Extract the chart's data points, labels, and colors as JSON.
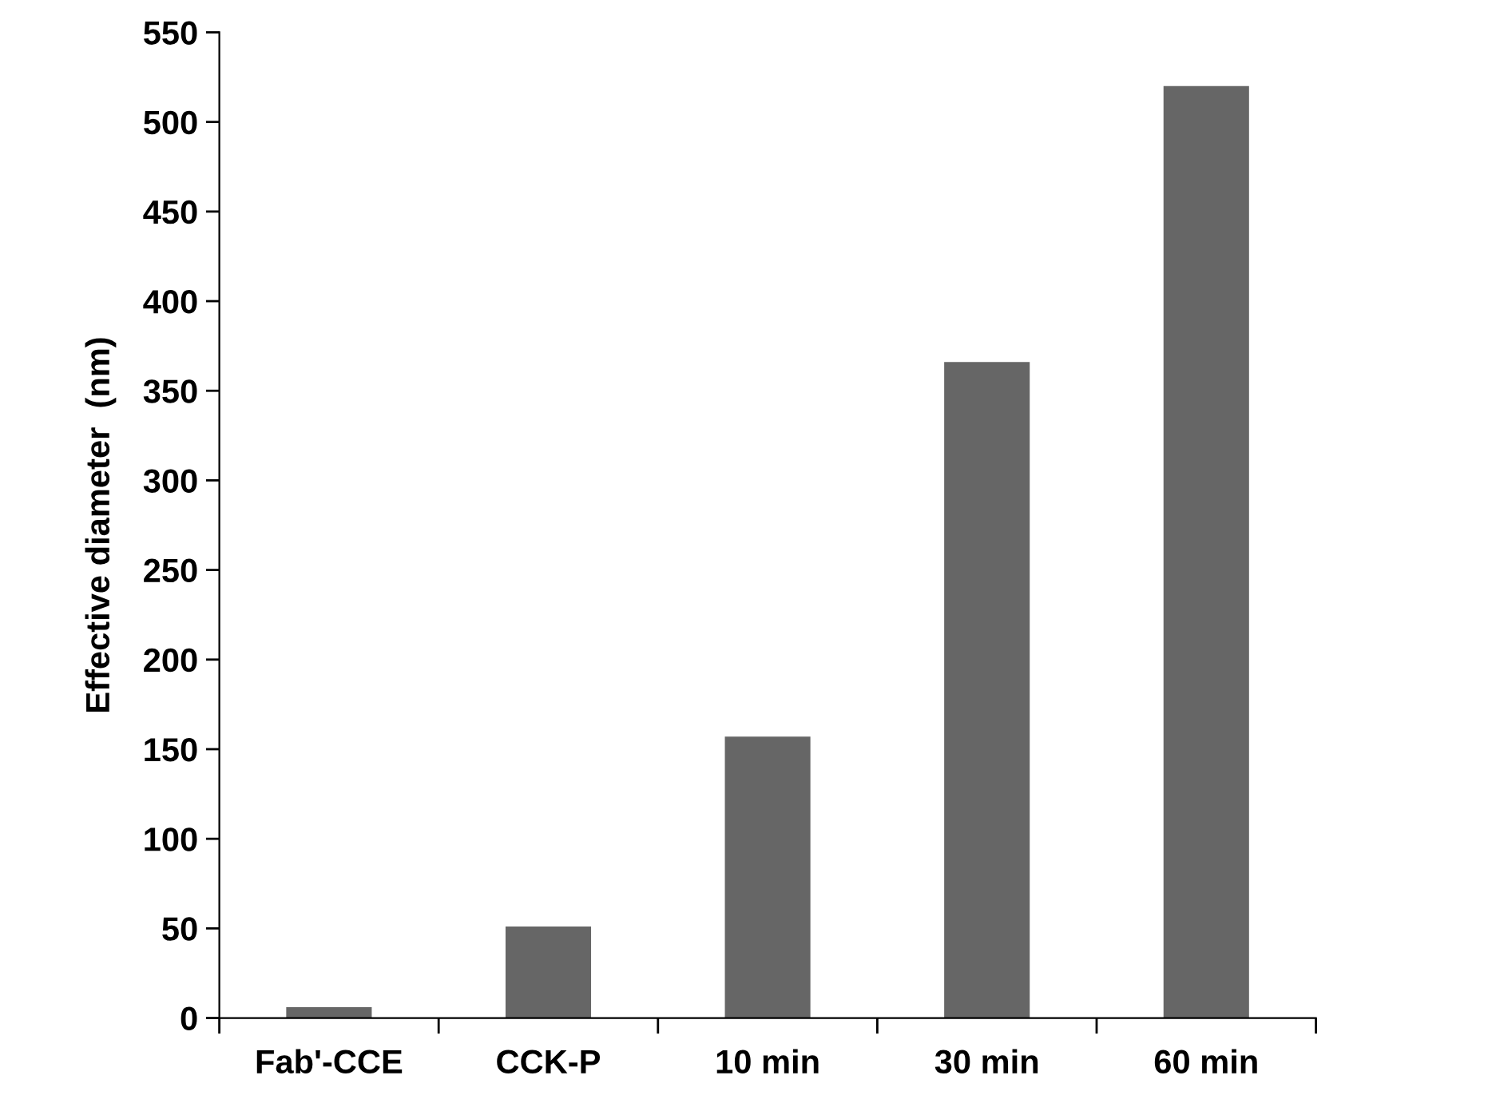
{
  "chart_data": {
    "type": "bar",
    "ylabel": "Effective diameter  (nm)",
    "categories": [
      "Fab'-CCE",
      "CCK-P",
      "10 min",
      "30 min",
      "60 min"
    ],
    "values": [
      6,
      51,
      157,
      366,
      520
    ],
    "color": "#666666",
    "ylim": [
      0,
      550
    ],
    "yticks": [
      0,
      50,
      100,
      150,
      200,
      250,
      300,
      350,
      400,
      450,
      500,
      550
    ],
    "grid": false,
    "legend": false
  }
}
